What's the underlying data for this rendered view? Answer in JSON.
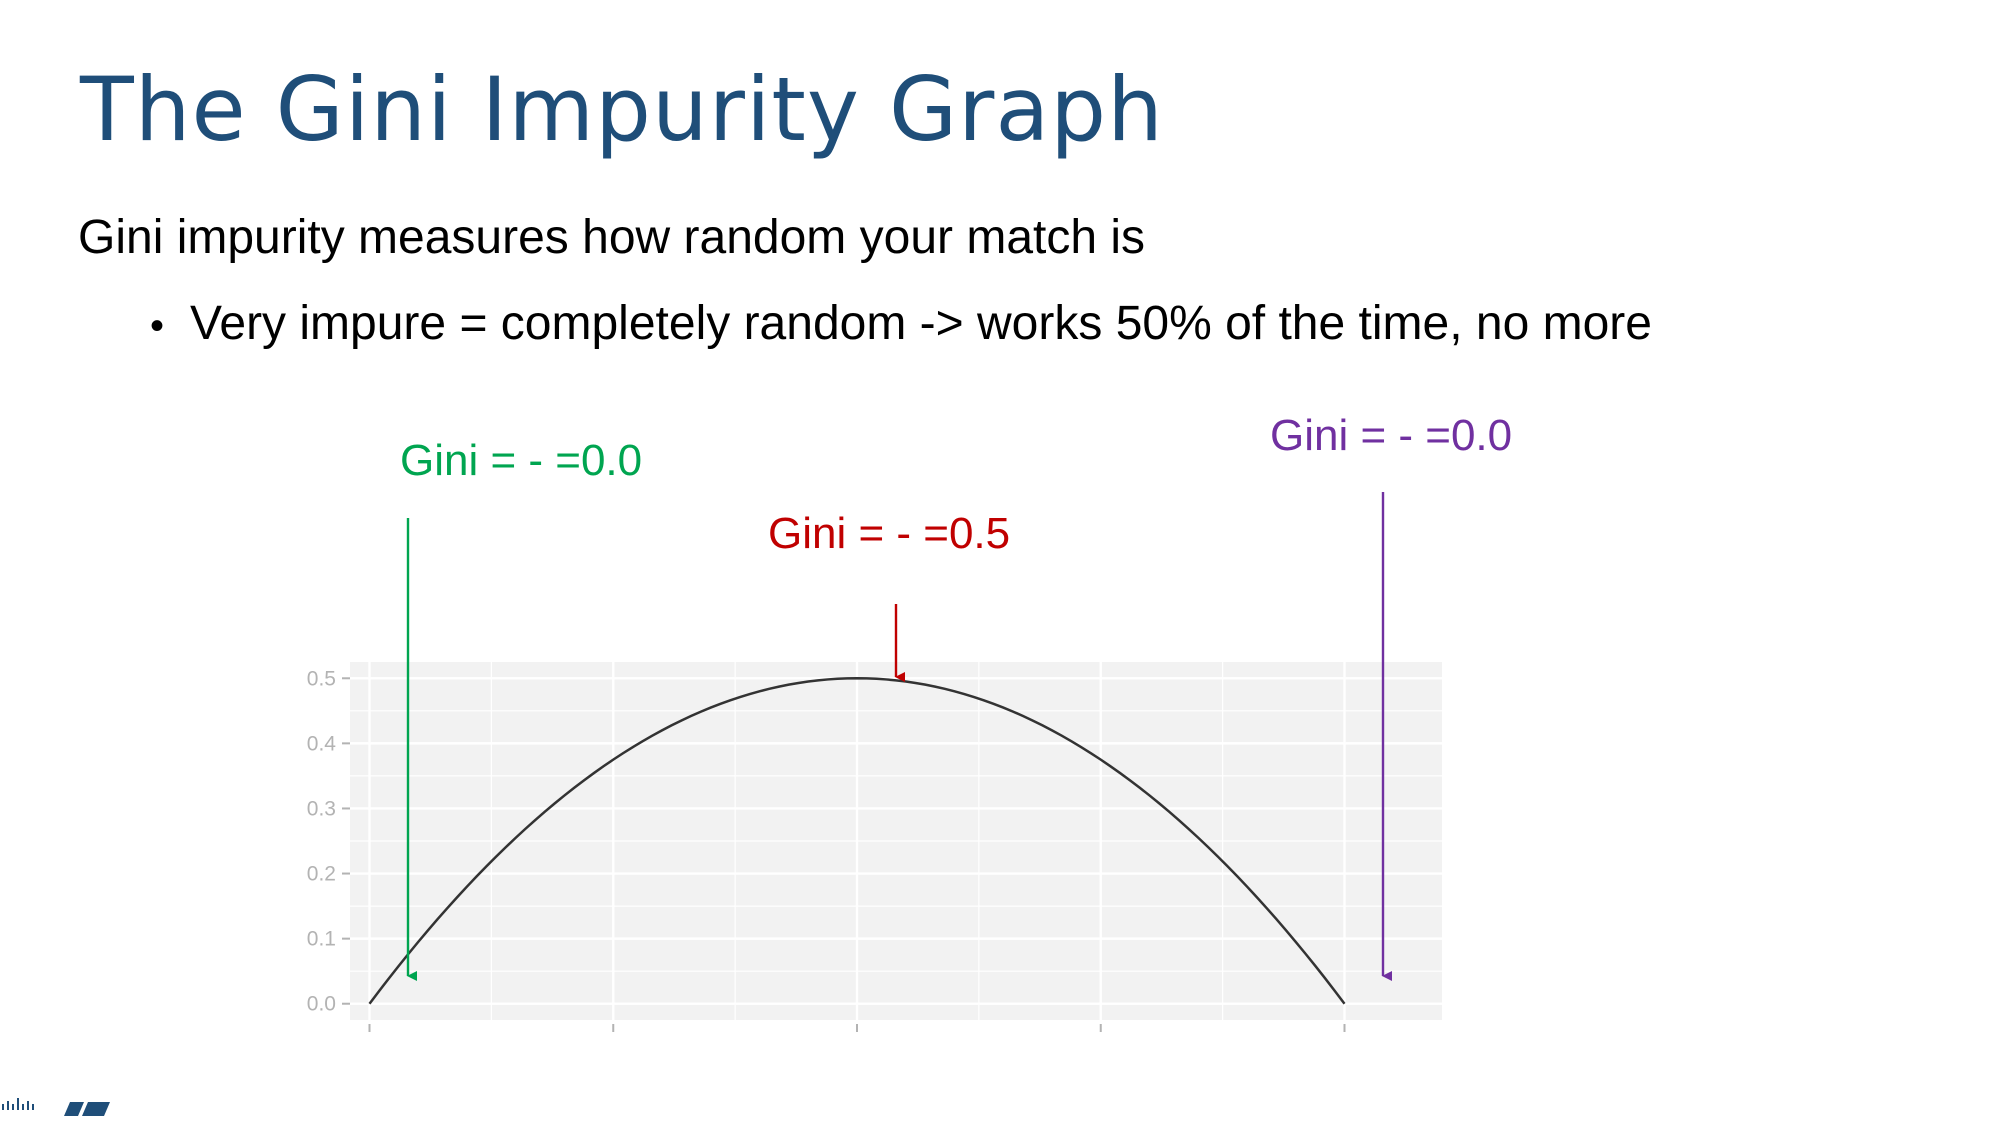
{
  "slide": {
    "title": "The Gini Impurity Graph",
    "lead": "Gini impurity measures how random your match is",
    "bullets": [
      "Very impure = completely random -> works 50% of the time, no more"
    ]
  },
  "annotations": [
    {
      "label": "Gini = - =0.0",
      "color": "#00a550",
      "target_x": 0.0,
      "target_y": 0.0
    },
    {
      "label": "Gini = - =0.5",
      "color": "#c00000",
      "target_x": 0.5,
      "target_y": 0.5
    },
    {
      "label": "Gini = - =0.0",
      "color": "#7030a0",
      "target_x": 1.0,
      "target_y": 0.0
    }
  ],
  "chart_data": {
    "type": "line",
    "title": "",
    "xlabel": "",
    "ylabel": "",
    "xlim": [
      -0.02,
      1.1
    ],
    "ylim": [
      -0.025,
      0.525
    ],
    "x_ticks": [
      0,
      0.25,
      0.5,
      0.75,
      1.0
    ],
    "y_ticks": [
      0.0,
      0.1,
      0.2,
      0.3,
      0.4,
      0.5
    ],
    "y_tick_labels": [
      "0.0",
      "0.1",
      "0.2",
      "0.3",
      "0.4",
      "0.5"
    ],
    "grid": true,
    "background": "#f2f2f2",
    "line_color": "#333333",
    "series": [
      {
        "x": [
          0,
          0.05,
          0.1,
          0.15,
          0.2,
          0.25,
          0.3,
          0.35,
          0.4,
          0.45,
          0.5,
          0.55,
          0.6,
          0.65,
          0.7,
          0.75,
          0.8,
          0.85,
          0.9,
          0.95,
          1.0
        ],
        "values": [
          0,
          0.095,
          0.18,
          0.255,
          0.32,
          0.375,
          0.42,
          0.455,
          0.48,
          0.495,
          0.5,
          0.495,
          0.48,
          0.455,
          0.42,
          0.375,
          0.32,
          0.255,
          0.18,
          0.095,
          0
        ]
      }
    ]
  }
}
